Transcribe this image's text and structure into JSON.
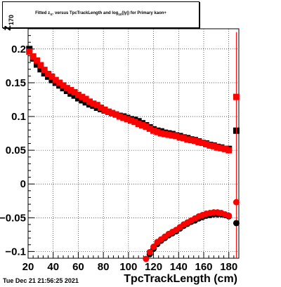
{
  "chart_data": {
    "type": "scatter",
    "title": "Fitted  zπ° versus TpcTrackLength and log10(|γ|) for Primary kaon+",
    "title_parts": {
      "prefix": "Fitted  z",
      "sub": "π°",
      "middle": " versus TpcTrackLength and log",
      "sub2": "10",
      "suffix": "(|γ|) for Primary kaon+"
    },
    "xlabel": "TpcTrackLength (cm)",
    "ylabel": "z",
    "ylabel_sub": "170",
    "xlim": [
      20,
      188
    ],
    "ylim": [
      -0.11,
      0.23
    ],
    "x_ticks": [
      20,
      40,
      60,
      80,
      100,
      120,
      140,
      160,
      180
    ],
    "y_ticks": [
      -0.1,
      -0.05,
      0,
      0.05,
      0.1,
      0.15,
      0.2
    ],
    "y_tick_labels": [
      "−0.1",
      "−0.05",
      "0",
      "0.05",
      "0.1",
      "0.15",
      "0.2"
    ],
    "grid": true,
    "colors": {
      "series_black": "#000000",
      "series_red": "#ff0000"
    },
    "series": [
      {
        "marker": "square",
        "color": "#000000",
        "points": [
          [
            21,
            0.2
          ],
          [
            24,
            0.186
          ],
          [
            27,
            0.177
          ],
          [
            30,
            0.17
          ],
          [
            33,
            0.164
          ],
          [
            36,
            0.159
          ],
          [
            39,
            0.154
          ],
          [
            42,
            0.15
          ],
          [
            45,
            0.146
          ],
          [
            48,
            0.142
          ],
          [
            51,
            0.138
          ],
          [
            54,
            0.134
          ],
          [
            57,
            0.131
          ],
          [
            60,
            0.127
          ],
          [
            63,
            0.124
          ],
          [
            66,
            0.121
          ],
          [
            69,
            0.118
          ],
          [
            72,
            0.116
          ],
          [
            75,
            0.113
          ],
          [
            78,
            0.111
          ],
          [
            81,
            0.109
          ],
          [
            84,
            0.107
          ],
          [
            87,
            0.105
          ],
          [
            90,
            0.103
          ],
          [
            93,
            0.101
          ],
          [
            96,
            0.1
          ],
          [
            99,
            0.098
          ],
          [
            102,
            0.096
          ],
          [
            105,
            0.095
          ],
          [
            108,
            0.093
          ],
          [
            111,
            0.09
          ],
          [
            114,
            0.087
          ],
          [
            117,
            0.084
          ],
          [
            120,
            0.081
          ],
          [
            123,
            0.079
          ],
          [
            126,
            0.078
          ],
          [
            129,
            0.076
          ],
          [
            132,
            0.075
          ],
          [
            135,
            0.074
          ],
          [
            138,
            0.072
          ],
          [
            141,
            0.071
          ],
          [
            144,
            0.069
          ],
          [
            147,
            0.068
          ],
          [
            150,
            0.066
          ],
          [
            153,
            0.065
          ],
          [
            156,
            0.063
          ],
          [
            159,
            0.061
          ],
          [
            162,
            0.06
          ],
          [
            165,
            0.058
          ],
          [
            168,
            0.057
          ],
          [
            171,
            0.055
          ],
          [
            174,
            0.054
          ],
          [
            177,
            0.052
          ],
          [
            180,
            0.052
          ],
          [
            186,
            0.079
          ]
        ]
      },
      {
        "marker": "square",
        "color": "#ff0000",
        "points": [
          [
            21,
            0.196
          ],
          [
            24,
            0.189
          ],
          [
            27,
            0.183
          ],
          [
            30,
            0.176
          ],
          [
            33,
            0.169
          ],
          [
            36,
            0.163
          ],
          [
            39,
            0.159
          ],
          [
            42,
            0.154
          ],
          [
            45,
            0.15
          ],
          [
            48,
            0.146
          ],
          [
            51,
            0.142
          ],
          [
            54,
            0.139
          ],
          [
            57,
            0.136
          ],
          [
            60,
            0.132
          ],
          [
            63,
            0.129
          ],
          [
            66,
            0.126
          ],
          [
            69,
            0.122
          ],
          [
            72,
            0.119
          ],
          [
            75,
            0.117
          ],
          [
            78,
            0.113
          ],
          [
            81,
            0.11
          ],
          [
            84,
            0.107
          ],
          [
            87,
            0.105
          ],
          [
            90,
            0.103
          ],
          [
            93,
            0.1
          ],
          [
            96,
            0.098
          ],
          [
            99,
            0.096
          ],
          [
            102,
            0.094
          ],
          [
            105,
            0.092
          ],
          [
            108,
            0.089
          ],
          [
            111,
            0.087
          ],
          [
            114,
            0.085
          ],
          [
            117,
            0.082
          ],
          [
            120,
            0.079
          ],
          [
            123,
            0.077
          ],
          [
            126,
            0.075
          ],
          [
            129,
            0.074
          ],
          [
            132,
            0.073
          ],
          [
            135,
            0.072
          ],
          [
            138,
            0.071
          ],
          [
            141,
            0.069
          ],
          [
            144,
            0.068
          ],
          [
            147,
            0.066
          ],
          [
            150,
            0.065
          ],
          [
            153,
            0.064
          ],
          [
            156,
            0.062
          ],
          [
            159,
            0.061
          ],
          [
            162,
            0.059
          ],
          [
            165,
            0.057
          ],
          [
            168,
            0.056
          ],
          [
            171,
            0.054
          ],
          [
            174,
            0.053
          ],
          [
            177,
            0.052
          ],
          [
            180,
            0.05
          ],
          [
            186,
            0.129
          ]
        ],
        "error_bars": [
          {
            "x": 186,
            "low": -0.11,
            "high": 0.225
          }
        ]
      },
      {
        "marker": "circle",
        "color": "#000000",
        "points": [
          [
            114,
            -0.118
          ],
          [
            117,
            -0.104
          ],
          [
            120,
            -0.096
          ],
          [
            123,
            -0.089
          ],
          [
            126,
            -0.084
          ],
          [
            129,
            -0.08
          ],
          [
            132,
            -0.076
          ],
          [
            135,
            -0.073
          ],
          [
            138,
            -0.07
          ],
          [
            141,
            -0.066
          ],
          [
            144,
            -0.062
          ],
          [
            147,
            -0.059
          ],
          [
            150,
            -0.056
          ],
          [
            153,
            -0.054
          ],
          [
            156,
            -0.051
          ],
          [
            159,
            -0.049
          ],
          [
            162,
            -0.047
          ],
          [
            165,
            -0.046
          ],
          [
            168,
            -0.045
          ],
          [
            171,
            -0.045
          ],
          [
            174,
            -0.045
          ],
          [
            177,
            -0.046
          ],
          [
            180,
            -0.048
          ],
          [
            186,
            -0.058
          ]
        ]
      },
      {
        "marker": "circle",
        "color": "#ff0000",
        "points": [
          [
            114,
            -0.111
          ],
          [
            117,
            -0.101
          ],
          [
            120,
            -0.093
          ],
          [
            123,
            -0.086
          ],
          [
            126,
            -0.082
          ],
          [
            129,
            -0.078
          ],
          [
            132,
            -0.074
          ],
          [
            135,
            -0.071
          ],
          [
            138,
            -0.068
          ],
          [
            141,
            -0.064
          ],
          [
            144,
            -0.06
          ],
          [
            147,
            -0.057
          ],
          [
            150,
            -0.054
          ],
          [
            153,
            -0.051
          ],
          [
            156,
            -0.048
          ],
          [
            159,
            -0.046
          ],
          [
            162,
            -0.044
          ],
          [
            165,
            -0.043
          ],
          [
            168,
            -0.042
          ],
          [
            171,
            -0.042
          ],
          [
            174,
            -0.043
          ],
          [
            177,
            -0.045
          ],
          [
            180,
            -0.047
          ],
          [
            186,
            -0.027
          ]
        ]
      }
    ]
  },
  "footer": {
    "timestamp": "Tue Dec 21 21:56:25 2021"
  }
}
